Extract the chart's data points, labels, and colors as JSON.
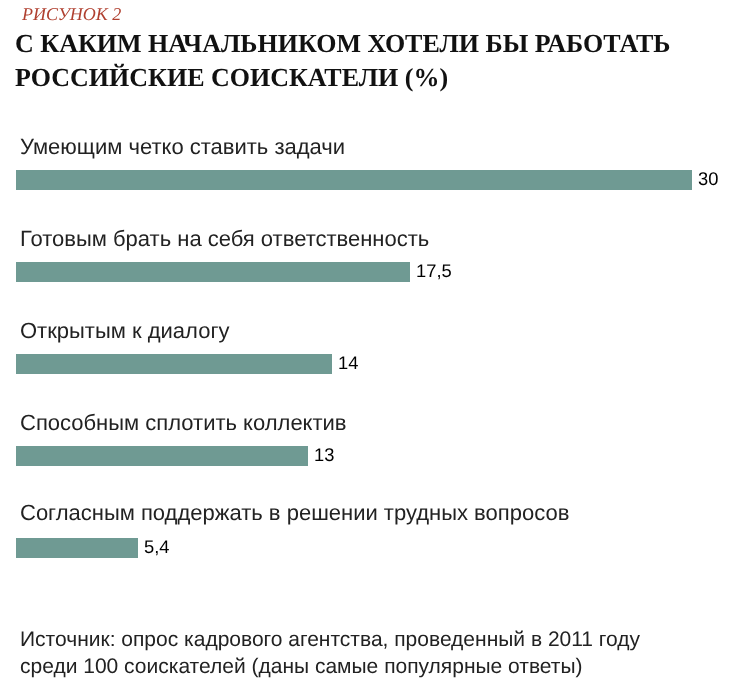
{
  "chart_data": {
    "type": "bar",
    "orientation": "horizontal",
    "title": "С КАКИМ НАЧАЛЬНИКОМ ХОТЕЛИ БЫ РАБОТАТЬ РОССИЙСКИЕ СОИСКАТЕЛИ (%)",
    "categories": [
      "Умеющим четко ставить задачи",
      "Готовым брать на себя ответственность",
      "Открытым к диалогу",
      "Способным сплотить коллектив",
      "Согласным поддержать в решении трудных вопросов"
    ],
    "values": [
      30,
      17.5,
      14,
      13,
      5.4
    ],
    "value_labels": [
      "30",
      "17,5",
      "14",
      "13",
      "5,4"
    ],
    "color": "#6f9a93",
    "annotations": [
      "РИСУНОК 2",
      "Источник: опрос кадрового агентства, проведенный в 2011 году среди 100 соискателей (даны самые популярные ответы)"
    ]
  }
}
